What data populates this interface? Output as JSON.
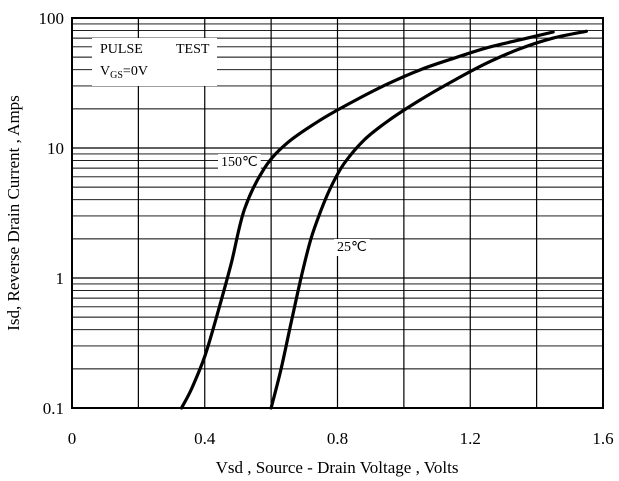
{
  "chart_data": {
    "type": "line",
    "xlabel": "Vsd , Source - Drain Voltage , Volts",
    "ylabel": "Isd, Reverse Drain Current , Amps",
    "xlim": [
      0,
      1.6
    ],
    "ylim": [
      0.1,
      100
    ],
    "yscale": "log",
    "grid": true,
    "x_ticks": [
      0,
      0.2,
      0.4,
      0.6,
      0.8,
      1.0,
      1.2,
      1.4,
      1.6
    ],
    "x_tick_labels": [
      "0",
      "",
      "0.4",
      "",
      "0.8",
      "",
      "1.2",
      "",
      "1.6"
    ],
    "y_ticks": [
      0.1,
      1,
      10,
      100
    ],
    "y_tick_labels": [
      "0.1",
      "1",
      "10",
      "100"
    ],
    "annotations": {
      "pulse": "PULSE",
      "test": "TEST",
      "vgs_main": "V",
      "vgs_sub": "GS",
      "vgs_value": "=0V"
    },
    "series": [
      {
        "name": "150℃",
        "x": [
          0.33,
          0.36,
          0.4,
          0.44,
          0.48,
          0.52,
          0.58,
          0.65,
          0.75,
          0.85,
          0.95,
          1.05,
          1.15,
          1.25,
          1.35,
          1.45
        ],
        "y": [
          0.1,
          0.14,
          0.25,
          0.55,
          1.3,
          3.4,
          7.0,
          11.0,
          16.5,
          23.0,
          31.0,
          40.0,
          49.0,
          59.0,
          68.0,
          78.0
        ]
      },
      {
        "name": "25℃",
        "x": [
          0.6,
          0.63,
          0.66,
          0.69,
          0.72,
          0.75,
          0.78,
          0.82,
          0.88,
          0.95,
          1.05,
          1.15,
          1.25,
          1.35,
          1.45,
          1.55
        ],
        "y": [
          0.1,
          0.2,
          0.45,
          1.0,
          2.0,
          3.3,
          5.0,
          7.6,
          11.5,
          16.0,
          23.5,
          33.0,
          45.0,
          58.0,
          70.0,
          79.0
        ]
      }
    ]
  }
}
